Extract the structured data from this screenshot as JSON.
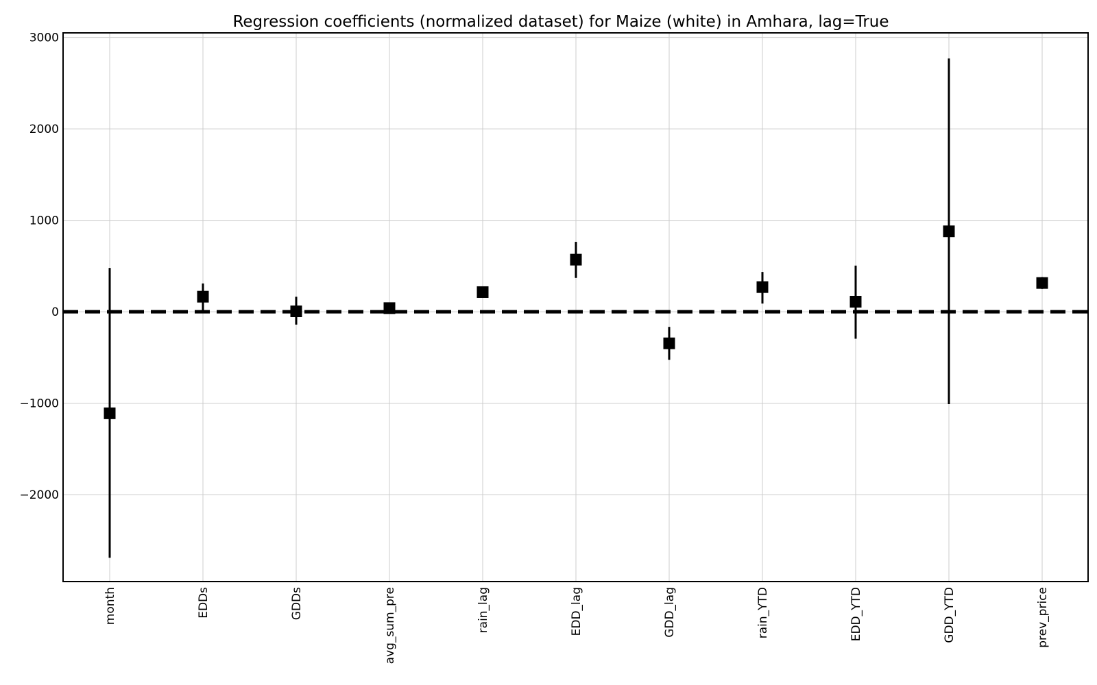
{
  "chart_data": {
    "type": "scatter",
    "title": "Regression coefficients (normalized dataset) for Maize (white) in Amhara, lag=True",
    "xlabel": "",
    "ylabel": "",
    "categories": [
      "month",
      "EDDs",
      "GDDs",
      "avg_sum_pre",
      "rain_lag",
      "EDD_lag",
      "GDD_lag",
      "rain_YTD",
      "EDD_YTD",
      "GDD_YTD",
      "prev_price"
    ],
    "coefficients": [
      -1110,
      165,
      5,
      40,
      215,
      570,
      -345,
      270,
      110,
      880,
      315
    ],
    "err_low": [
      -2690,
      15,
      -140,
      -20,
      175,
      370,
      -525,
      90,
      -295,
      -1010,
      250
    ],
    "err_high": [
      480,
      310,
      165,
      70,
      250,
      765,
      -165,
      435,
      505,
      2770,
      380
    ],
    "ylim": [
      -2950,
      3050
    ],
    "yticks": [
      3000,
      2000,
      1000,
      0,
      -1000,
      -2000
    ],
    "ytick_labels": [
      "3000",
      "2000",
      "1000",
      "0",
      "−1000",
      "−2000"
    ],
    "reference_line": 0,
    "marker": "square",
    "color": "#000000",
    "grid": true,
    "legend": "none"
  }
}
